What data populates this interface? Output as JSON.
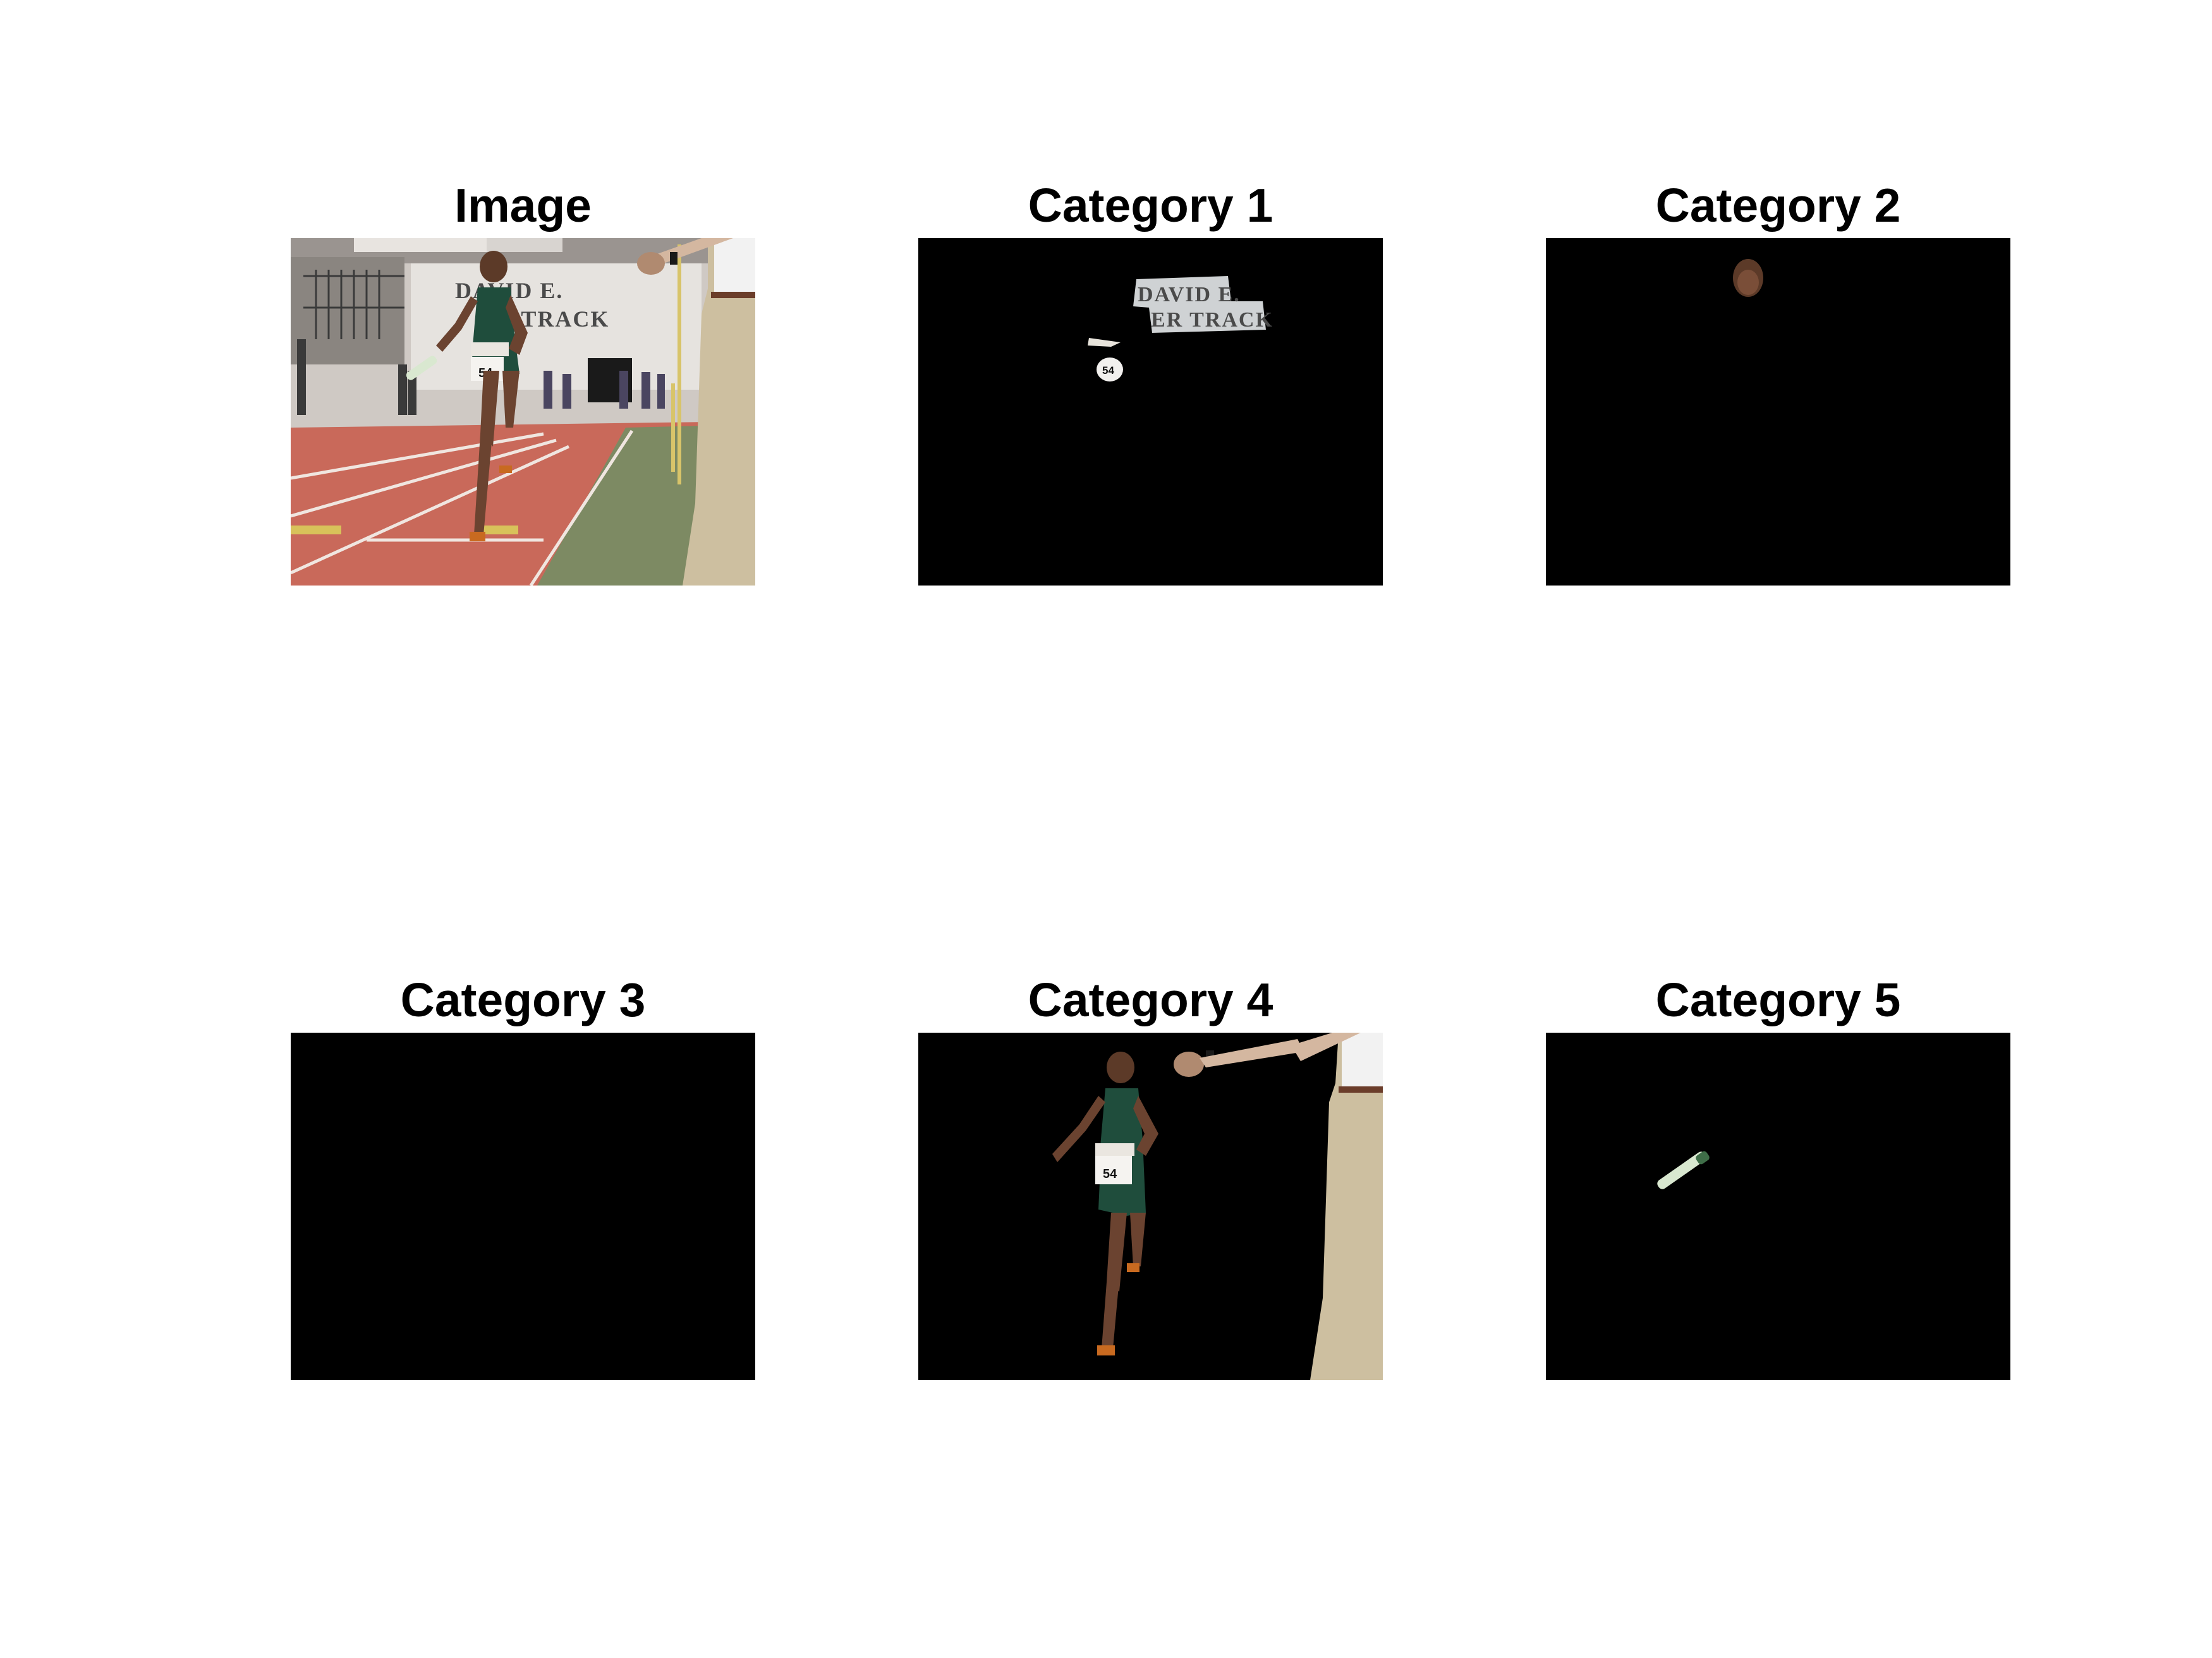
{
  "figure": {
    "panels": [
      {
        "title": "Image",
        "kind": "photo"
      },
      {
        "title": "Category 1",
        "kind": "mask",
        "segment": "sign-and-bib"
      },
      {
        "title": "Category 2",
        "kind": "mask",
        "segment": "face"
      },
      {
        "title": "Category 3",
        "kind": "mask",
        "segment": "empty"
      },
      {
        "title": "Category 4",
        "kind": "mask",
        "segment": "people"
      },
      {
        "title": "Category 5",
        "kind": "mask",
        "segment": "baton"
      }
    ],
    "scene_text": {
      "sign_line_1": "DAVID E.",
      "sign_line_2": "ER TRACK",
      "bib_number": "54"
    },
    "colors": {
      "mask_background": "#000000",
      "track": "#c9695a",
      "infield": "#7d8a63",
      "uniform": "#1f4d3c",
      "skin": "#6b4330",
      "khaki": "#cdbfa0"
    }
  }
}
